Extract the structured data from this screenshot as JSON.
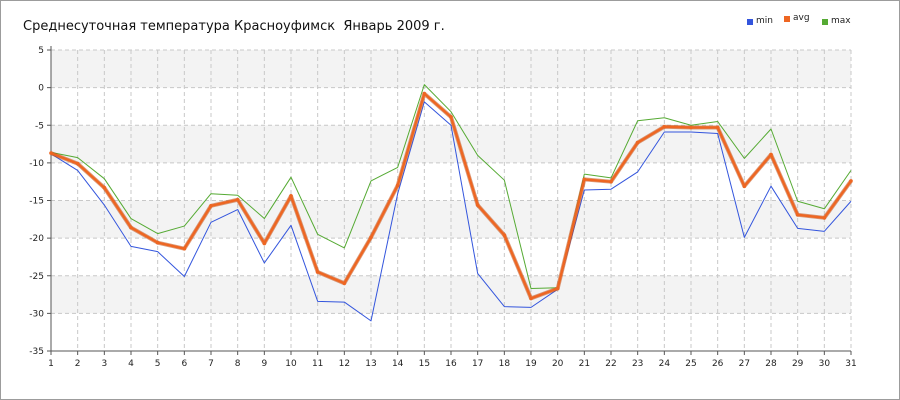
{
  "chart_data": {
    "type": "line",
    "title": "Среднесуточная температура Красноуфимск  Январь 2009 г.",
    "xlabel": "",
    "ylabel": "",
    "x": [
      1,
      2,
      3,
      4,
      5,
      6,
      7,
      8,
      9,
      10,
      11,
      12,
      13,
      14,
      15,
      16,
      17,
      18,
      19,
      20,
      21,
      22,
      23,
      24,
      25,
      26,
      27,
      28,
      29,
      30,
      31
    ],
    "xlim": [
      1,
      31
    ],
    "ylim": [
      -35,
      5
    ],
    "yticks": [
      5,
      0,
      -5,
      -10,
      -15,
      -20,
      -25,
      -30,
      -35
    ],
    "yticks_labels": [
      "5",
      "0",
      "-5",
      "-10",
      "-15",
      "-20",
      "-25",
      "-30",
      "-35"
    ],
    "xticks_labels": [
      "1",
      "2",
      "3",
      "4",
      "5",
      "6",
      "7",
      "8",
      "9",
      "10",
      "11",
      "12",
      "13",
      "14",
      "15",
      "16",
      "17",
      "18",
      "19",
      "20",
      "21",
      "22",
      "23",
      "24",
      "25",
      "26",
      "27",
      "28",
      "29",
      "30",
      "31"
    ],
    "grid": true,
    "legend_position": "top-right",
    "series": [
      {
        "name": "min",
        "color": "#3355dd",
        "values": [
          -8.8,
          -11.0,
          -15.6,
          -21.1,
          -21.8,
          -25.1,
          -17.9,
          -16.2,
          -23.3,
          -18.3,
          -28.4,
          -28.5,
          -31.0,
          -14.1,
          -1.9,
          -5.0,
          -24.7,
          -29.1,
          -29.2,
          -26.8,
          -13.6,
          -13.5,
          -11.2,
          -5.9,
          -5.9,
          -6.1,
          -19.9,
          -13.1,
          -18.7,
          -19.1,
          -15.1
        ]
      },
      {
        "name": "avg",
        "color": "#ee6622",
        "values": [
          -8.7,
          -10.1,
          -13.3,
          -18.6,
          -20.6,
          -21.4,
          -15.7,
          -14.9,
          -20.7,
          -14.4,
          -24.5,
          -26.0,
          -19.9,
          -13.0,
          -0.8,
          -3.9,
          -15.6,
          -19.6,
          -28.0,
          -26.7,
          -12.2,
          -12.5,
          -7.3,
          -5.2,
          -5.3,
          -5.3,
          -13.1,
          -8.9,
          -16.9,
          -17.3,
          -12.4
        ]
      },
      {
        "name": "max",
        "color": "#55aa33",
        "values": [
          -8.6,
          -9.3,
          -12.1,
          -17.4,
          -19.4,
          -18.4,
          -14.1,
          -14.3,
          -17.4,
          -11.9,
          -19.5,
          -21.3,
          -12.4,
          -10.6,
          0.4,
          -3.2,
          -9.0,
          -12.3,
          -26.7,
          -26.6,
          -11.5,
          -12.0,
          -4.4,
          -4.0,
          -5.0,
          -4.5,
          -9.4,
          -5.5,
          -15.1,
          -16.1,
          -11.0
        ]
      }
    ]
  },
  "colors": {
    "band": "#f3f3f3",
    "grid": "#c8c8c8",
    "axis": "#555555",
    "border": "#9c9c9c"
  }
}
